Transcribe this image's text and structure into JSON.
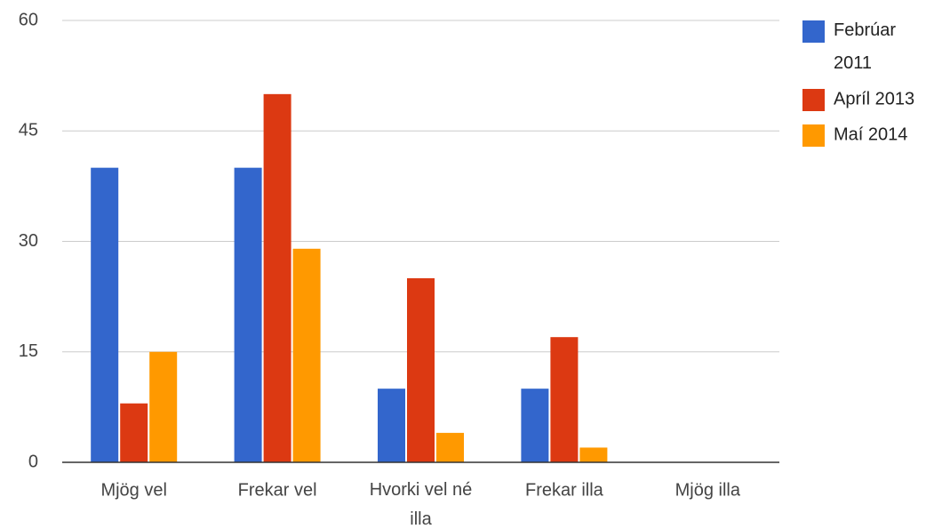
{
  "chart_data": {
    "type": "bar",
    "categories": [
      "Mjög vel",
      "Frekar vel",
      "Hvorki vel né illa",
      "Frekar illa",
      "Mjög illa"
    ],
    "series": [
      {
        "name": "Febrúar 2011",
        "color": "#3366cc",
        "values": [
          40,
          40,
          10,
          10,
          0
        ]
      },
      {
        "name": "Apríl 2013",
        "color": "#dc3912",
        "values": [
          8,
          50,
          25,
          17,
          0
        ]
      },
      {
        "name": "Maí 2014",
        "color": "#ff9900",
        "values": [
          15,
          29,
          4,
          2,
          0
        ]
      }
    ],
    "ylim": [
      0,
      60
    ],
    "yticks": [
      0,
      15,
      30,
      45,
      60
    ],
    "grid": true,
    "legend": "right"
  }
}
